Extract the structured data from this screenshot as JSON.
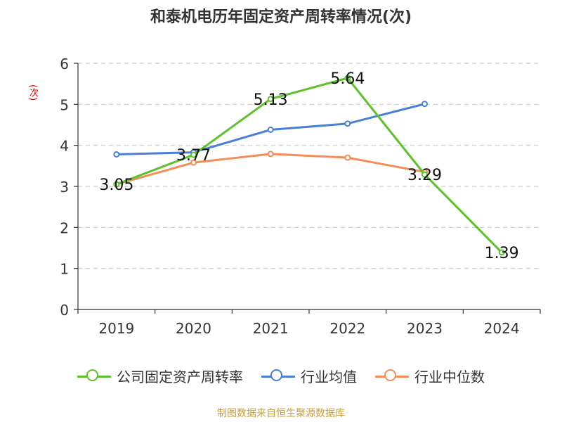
{
  "chart_data": {
    "type": "line",
    "title": "和泰机电历年固定资产周转率情况(次)",
    "ylabel": "(次)",
    "xlabel": "",
    "categories": [
      "2019",
      "2020",
      "2021",
      "2022",
      "2023",
      "2024"
    ],
    "y_ticks": [
      "0",
      "1",
      "2",
      "3",
      "4",
      "5",
      "6"
    ],
    "ylim": [
      0,
      6
    ],
    "grid": "horizontal dashed",
    "legend_position": "bottom",
    "series": [
      {
        "name": "公司固定资产周转率",
        "color": "#5cc12a",
        "values": [
          3.05,
          3.77,
          5.13,
          5.64,
          3.29,
          1.39
        ],
        "labels": [
          "3.05",
          "3.77",
          "5.13",
          "5.64",
          "3.29",
          "1.39"
        ]
      },
      {
        "name": "行业均值",
        "color": "#4a7fd8",
        "values": [
          3.78,
          3.83,
          4.38,
          4.53,
          5.01,
          null
        ]
      },
      {
        "name": "行业中位数",
        "color": "#f58d58",
        "values": [
          3.05,
          3.58,
          3.79,
          3.7,
          3.35,
          null
        ]
      }
    ]
  },
  "source_note": "制图数据来自恒生聚源数据库"
}
